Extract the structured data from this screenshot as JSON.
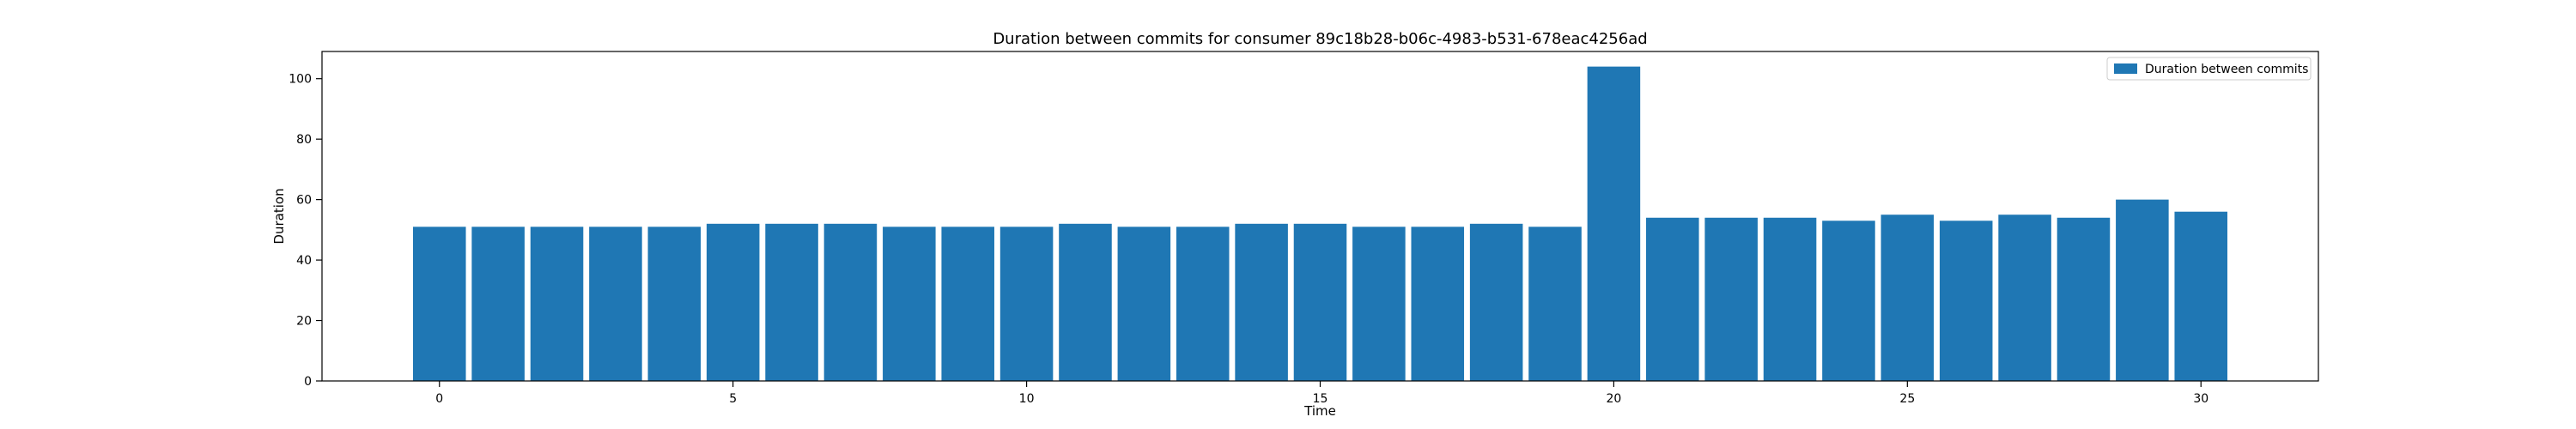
{
  "chart_data": {
    "type": "bar",
    "title": "Duration between commits for consumer 89c18b28-b06c-4983-b531-678eac4256ad",
    "xlabel": "Time",
    "ylabel": "Duration",
    "xlim": [
      -2,
      32
    ],
    "ylim": [
      0,
      109
    ],
    "xticks": [
      0,
      5,
      10,
      15,
      20,
      25,
      30
    ],
    "yticks": [
      0,
      20,
      40,
      60,
      80,
      100
    ],
    "grid": false,
    "legend_position": "top-right",
    "colors": {
      "bar": "#1f77b4"
    },
    "series": [
      {
        "name": "Duration between commits",
        "x": [
          0,
          1,
          2,
          3,
          4,
          5,
          6,
          7,
          8,
          9,
          10,
          11,
          12,
          13,
          14,
          15,
          16,
          17,
          18,
          19,
          20,
          21,
          22,
          23,
          24,
          25,
          26,
          27,
          28,
          29,
          30
        ],
        "values": [
          51,
          51,
          51,
          51,
          51,
          52,
          52,
          52,
          51,
          51,
          51,
          52,
          51,
          51,
          52,
          52,
          51,
          51,
          52,
          51,
          104,
          54,
          54,
          54,
          53,
          55,
          53,
          55,
          54,
          60,
          56
        ]
      }
    ]
  }
}
